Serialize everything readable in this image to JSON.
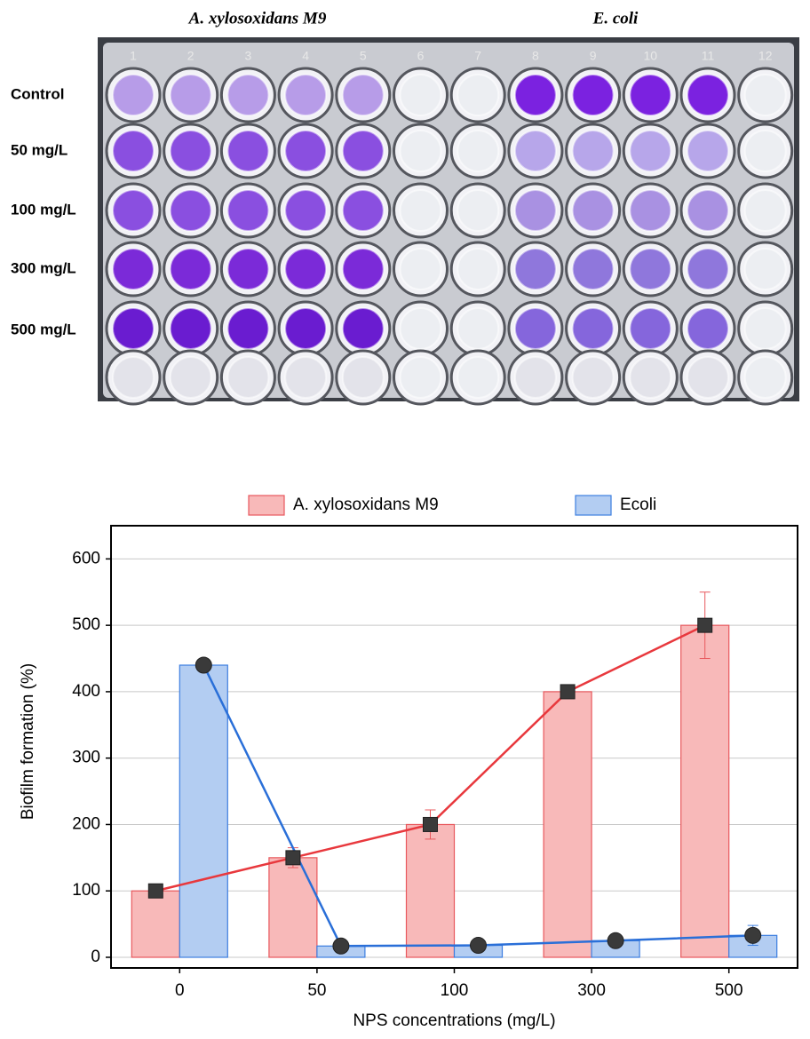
{
  "photo": {
    "strain_labels": [
      "A. xylosoxidans M9",
      "E. coli"
    ],
    "row_labels": [
      "Control",
      "50 mg/L",
      "100 mg/L",
      "300 mg/L",
      "500 mg/L"
    ],
    "column_numbers": [
      "1",
      "2",
      "3",
      "4",
      "5",
      "6",
      "7",
      "8",
      "9",
      "10",
      "11",
      "12"
    ]
  },
  "chart_data": {
    "type": "bar",
    "categories": [
      "0",
      "50",
      "100",
      "300",
      "500"
    ],
    "series": [
      {
        "name": "A. xylosoxidans M9",
        "color": "#f8b9b9",
        "line_color": "#e8383d",
        "edge_color": "#e8585d",
        "marker": "square",
        "values": [
          100,
          150,
          200,
          400,
          500
        ],
        "errors": [
          0,
          15,
          22,
          10,
          50
        ]
      },
      {
        "name": "Ecoli",
        "color": "#b3cdf2",
        "line_color": "#2a6fd8",
        "edge_color": "#3c7ee0",
        "marker": "circle",
        "values": [
          440,
          17,
          18,
          25,
          33
        ],
        "errors": [
          8,
          3,
          3,
          3,
          15
        ]
      }
    ],
    "y_label": "Biofilm formation (%)",
    "x_label": "NPS concentrations (mg/L)",
    "ylim": [
      0,
      650
    ],
    "yticks": [
      0,
      100,
      200,
      300,
      400,
      500,
      600
    ],
    "grid": true,
    "legend": "top"
  }
}
